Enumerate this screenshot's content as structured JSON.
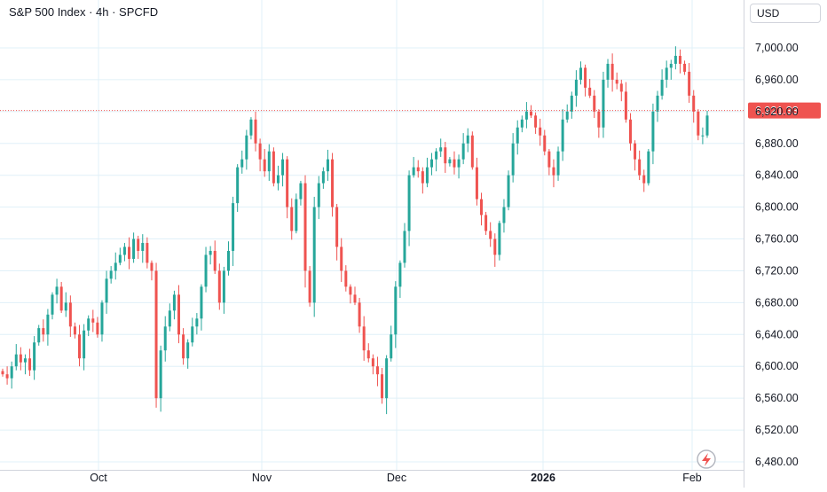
{
  "header": {
    "title": "S&P 500 Index · 4h · SPCFD",
    "currency": "USD"
  },
  "colors": {
    "up": "#26a69a",
    "down": "#ef5350",
    "grid": "#e0f0f8",
    "axis_text": "#131722",
    "last_price": "#ef5350"
  },
  "icons": {
    "bottom_right": "lightning-icon"
  },
  "chart_data": {
    "type": "candlestick",
    "title": "S&P 500 Index · 4h · SPCFD",
    "currency": "USD",
    "y_ticks": [
      "7,000.00",
      "6,960.00",
      "6,920.00",
      "6,880.00",
      "6,840.00",
      "6,800.00",
      "6,760.00",
      "6,720.00",
      "6,680.00",
      "6,640.00",
      "6,600.00",
      "6,560.00",
      "6,520.00",
      "6,480.00"
    ],
    "x_ticks": [
      "Oct",
      "Nov",
      "Dec",
      "2026",
      "Feb"
    ],
    "ylim": [
      6480,
      7000
    ],
    "last_price": 6921.33,
    "last_price_label": "6,921.33",
    "grid": true,
    "series_closes": [
      6590,
      6585,
      6600,
      6615,
      6605,
      6610,
      6595,
      6630,
      6648,
      6640,
      6665,
      6690,
      6700,
      6670,
      6680,
      6650,
      6640,
      6610,
      6645,
      6660,
      6655,
      6640,
      6680,
      6710,
      6720,
      6730,
      6740,
      6750,
      6735,
      6760,
      6745,
      6755,
      6730,
      6720,
      6560,
      6620,
      6650,
      6670,
      6690,
      6640,
      6610,
      6630,
      6650,
      6660,
      6700,
      6740,
      6745,
      6720,
      6680,
      6720,
      6745,
      6805,
      6850,
      6860,
      6890,
      6910,
      6880,
      6860,
      6845,
      6870,
      6830,
      6840,
      6860,
      6800,
      6770,
      6810,
      6830,
      6720,
      6680,
      6800,
      6830,
      6845,
      6860,
      6800,
      6750,
      6720,
      6700,
      6690,
      6680,
      6650,
      6620,
      6610,
      6600,
      6590,
      6560,
      6610,
      6640,
      6700,
      6730,
      6770,
      6840,
      6850,
      6845,
      6830,
      6850,
      6860,
      6870,
      6875,
      6855,
      6860,
      6850,
      6860,
      6880,
      6890,
      6850,
      6810,
      6790,
      6770,
      6760,
      6740,
      6780,
      6800,
      6840,
      6880,
      6900,
      6910,
      6920,
      6915,
      6900,
      6890,
      6870,
      6850,
      6840,
      6870,
      6910,
      6920,
      6940,
      6960,
      6975,
      6950,
      6940,
      6920,
      6900,
      6960,
      6980,
      6960,
      6955,
      6945,
      6910,
      6880,
      6860,
      6840,
      6830,
      6870,
      6920,
      6940,
      6960,
      6975,
      6980,
      6990,
      6980,
      6970,
      6940,
      6920,
      6890,
      6890,
      6915
    ]
  }
}
